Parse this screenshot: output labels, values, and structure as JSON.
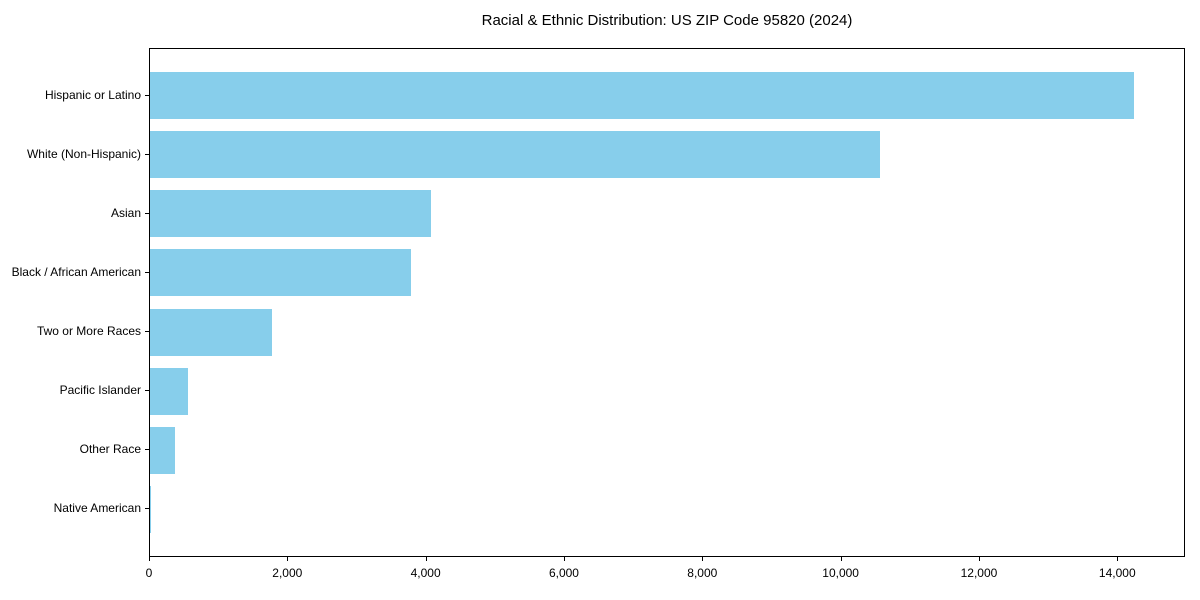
{
  "chart_data": {
    "type": "bar",
    "orientation": "horizontal",
    "title": "Racial & Ethnic Distribution: US ZIP Code 95820 (2024)",
    "categories": [
      "Hispanic or Latino",
      "White (Non-Hispanic)",
      "Asian",
      "Black / African American",
      "Two or More Races",
      "Pacific Islander",
      "Other Race",
      "Native American"
    ],
    "values": [
      14230,
      10550,
      4070,
      3770,
      1770,
      555,
      360,
      20
    ],
    "xlabel": "",
    "ylabel": "",
    "xlim": [
      0,
      14950
    ],
    "x_ticks": [
      0,
      2000,
      4000,
      6000,
      8000,
      10000,
      12000,
      14000
    ],
    "x_tick_labels": [
      "0",
      "2,000",
      "4,000",
      "6,000",
      "8,000",
      "10,000",
      "12,000",
      "14,000"
    ],
    "bar_color": "#87CEEB",
    "grid": false,
    "legend_position": "none",
    "value_labels_shown": false
  }
}
